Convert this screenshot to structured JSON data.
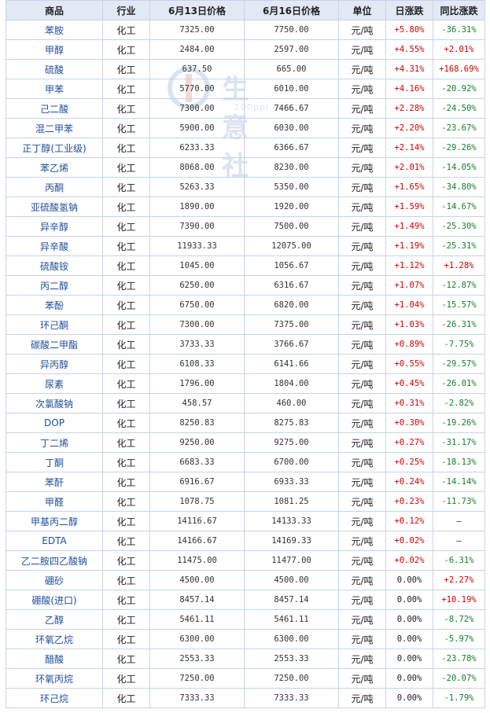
{
  "headers": [
    "商品",
    "行业",
    "6月13日价格",
    "6月16日价格",
    "单位",
    "日涨跌",
    "同比涨跌"
  ],
  "rows": [
    {
      "name": "苯胺",
      "industry": "化工",
      "p1": "7325.00",
      "p2": "7750.00",
      "unit": "元/吨",
      "daily": "+5.80%",
      "yoy": "-36.31%"
    },
    {
      "name": "甲醇",
      "industry": "化工",
      "p1": "2484.00",
      "p2": "2597.00",
      "unit": "元/吨",
      "daily": "+4.55%",
      "yoy": "+2.01%"
    },
    {
      "name": "硫酸",
      "industry": "化工",
      "p1": "637.50",
      "p2": "665.00",
      "unit": "元/吨",
      "daily": "+4.31%",
      "yoy": "+168.69%"
    },
    {
      "name": "甲苯",
      "industry": "化工",
      "p1": "5770.00",
      "p2": "6010.00",
      "unit": "元/吨",
      "daily": "+4.16%",
      "yoy": "-20.92%"
    },
    {
      "name": "己二酸",
      "industry": "化工",
      "p1": "7300.00",
      "p2": "7466.67",
      "unit": "元/吨",
      "daily": "+2.28%",
      "yoy": "-24.50%"
    },
    {
      "name": "混二甲苯",
      "industry": "化工",
      "p1": "5900.00",
      "p2": "6030.00",
      "unit": "元/吨",
      "daily": "+2.20%",
      "yoy": "-23.67%"
    },
    {
      "name": "正丁醇(工业级)",
      "industry": "化工",
      "p1": "6233.33",
      "p2": "6366.67",
      "unit": "元/吨",
      "daily": "+2.14%",
      "yoy": "-29.26%"
    },
    {
      "name": "苯乙烯",
      "industry": "化工",
      "p1": "8068.00",
      "p2": "8230.00",
      "unit": "元/吨",
      "daily": "+2.01%",
      "yoy": "-14.05%"
    },
    {
      "name": "丙酮",
      "industry": "化工",
      "p1": "5263.33",
      "p2": "5350.00",
      "unit": "元/吨",
      "daily": "+1.65%",
      "yoy": "-34.80%"
    },
    {
      "name": "亚硫酸氢钠",
      "industry": "化工",
      "p1": "1890.00",
      "p2": "1920.00",
      "unit": "元/吨",
      "daily": "+1.59%",
      "yoy": "-14.67%"
    },
    {
      "name": "异辛醇",
      "industry": "化工",
      "p1": "7390.00",
      "p2": "7500.00",
      "unit": "元/吨",
      "daily": "+1.49%",
      "yoy": "-25.30%"
    },
    {
      "name": "异辛酸",
      "industry": "化工",
      "p1": "11933.33",
      "p2": "12075.00",
      "unit": "元/吨",
      "daily": "+1.19%",
      "yoy": "-25.31%"
    },
    {
      "name": "硫酸铵",
      "industry": "化工",
      "p1": "1045.00",
      "p2": "1056.67",
      "unit": "元/吨",
      "daily": "+1.12%",
      "yoy": "+1.28%"
    },
    {
      "name": "丙二醇",
      "industry": "化工",
      "p1": "6250.00",
      "p2": "6316.67",
      "unit": "元/吨",
      "daily": "+1.07%",
      "yoy": "-12.87%"
    },
    {
      "name": "苯酚",
      "industry": "化工",
      "p1": "6750.00",
      "p2": "6820.00",
      "unit": "元/吨",
      "daily": "+1.04%",
      "yoy": "-15.57%"
    },
    {
      "name": "环己酮",
      "industry": "化工",
      "p1": "7300.00",
      "p2": "7375.00",
      "unit": "元/吨",
      "daily": "+1.03%",
      "yoy": "-26.31%"
    },
    {
      "name": "碳酸二甲酯",
      "industry": "化工",
      "p1": "3733.33",
      "p2": "3766.67",
      "unit": "元/吨",
      "daily": "+0.89%",
      "yoy": "-7.75%"
    },
    {
      "name": "异丙醇",
      "industry": "化工",
      "p1": "6108.33",
      "p2": "6141.66",
      "unit": "元/吨",
      "daily": "+0.55%",
      "yoy": "-29.57%"
    },
    {
      "name": "尿素",
      "industry": "化工",
      "p1": "1796.00",
      "p2": "1804.00",
      "unit": "元/吨",
      "daily": "+0.45%",
      "yoy": "-26.01%"
    },
    {
      "name": "次氯酸钠",
      "industry": "化工",
      "p1": "458.57",
      "p2": "460.00",
      "unit": "元/吨",
      "daily": "+0.31%",
      "yoy": "-2.82%"
    },
    {
      "name": "DOP",
      "industry": "化工",
      "p1": "8250.83",
      "p2": "8275.83",
      "unit": "元/吨",
      "daily": "+0.30%",
      "yoy": "-19.26%"
    },
    {
      "name": "丁二烯",
      "industry": "化工",
      "p1": "9250.00",
      "p2": "9275.00",
      "unit": "元/吨",
      "daily": "+0.27%",
      "yoy": "-31.17%"
    },
    {
      "name": "丁酮",
      "industry": "化工",
      "p1": "6683.33",
      "p2": "6700.00",
      "unit": "元/吨",
      "daily": "+0.25%",
      "yoy": "-18.13%"
    },
    {
      "name": "苯酐",
      "industry": "化工",
      "p1": "6916.67",
      "p2": "6933.33",
      "unit": "元/吨",
      "daily": "+0.24%",
      "yoy": "-14.14%"
    },
    {
      "name": "甲醛",
      "industry": "化工",
      "p1": "1078.75",
      "p2": "1081.25",
      "unit": "元/吨",
      "daily": "+0.23%",
      "yoy": "-11.73%"
    },
    {
      "name": "甲基丙二醇",
      "industry": "化工",
      "p1": "14116.67",
      "p2": "14133.33",
      "unit": "元/吨",
      "daily": "+0.12%",
      "yoy": "—"
    },
    {
      "name": "EDTA",
      "industry": "化工",
      "p1": "14166.67",
      "p2": "14169.33",
      "unit": "元/吨",
      "daily": "+0.02%",
      "yoy": "—"
    },
    {
      "name": "乙二胺四乙酸钠",
      "industry": "化工",
      "p1": "11475.00",
      "p2": "11477.00",
      "unit": "元/吨",
      "daily": "+0.02%",
      "yoy": "-6.31%"
    },
    {
      "name": "硼砂",
      "industry": "化工",
      "p1": "4500.00",
      "p2": "4500.00",
      "unit": "元/吨",
      "daily": "0.00%",
      "yoy": "+2.27%"
    },
    {
      "name": "硼酸(进口)",
      "industry": "化工",
      "p1": "8457.14",
      "p2": "8457.14",
      "unit": "元/吨",
      "daily": "0.00%",
      "yoy": "+10.19%"
    },
    {
      "name": "乙醇",
      "industry": "化工",
      "p1": "5461.11",
      "p2": "5461.11",
      "unit": "元/吨",
      "daily": "0.00%",
      "yoy": "-8.72%"
    },
    {
      "name": "环氧乙烷",
      "industry": "化工",
      "p1": "6300.00",
      "p2": "6300.00",
      "unit": "元/吨",
      "daily": "0.00%",
      "yoy": "-5.97%"
    },
    {
      "name": "醋酸",
      "industry": "化工",
      "p1": "2553.33",
      "p2": "2553.33",
      "unit": "元/吨",
      "daily": "0.00%",
      "yoy": "-23.78%"
    },
    {
      "name": "环氧丙烷",
      "industry": "化工",
      "p1": "7250.00",
      "p2": "7250.00",
      "unit": "元/吨",
      "daily": "0.00%",
      "yoy": "-20.07%"
    },
    {
      "name": "环己烷",
      "industry": "化工",
      "p1": "7333.33",
      "p2": "7333.33",
      "unit": "元/吨",
      "daily": "0.00%",
      "yoy": "-1.79%"
    }
  ],
  "watermark": {
    "name": "生意社",
    "url": "100ppi.com"
  },
  "colors": {
    "up": "#d40000",
    "down": "#14802a",
    "header_bg": "#e1e9f5",
    "link": "#1f4e9b"
  }
}
